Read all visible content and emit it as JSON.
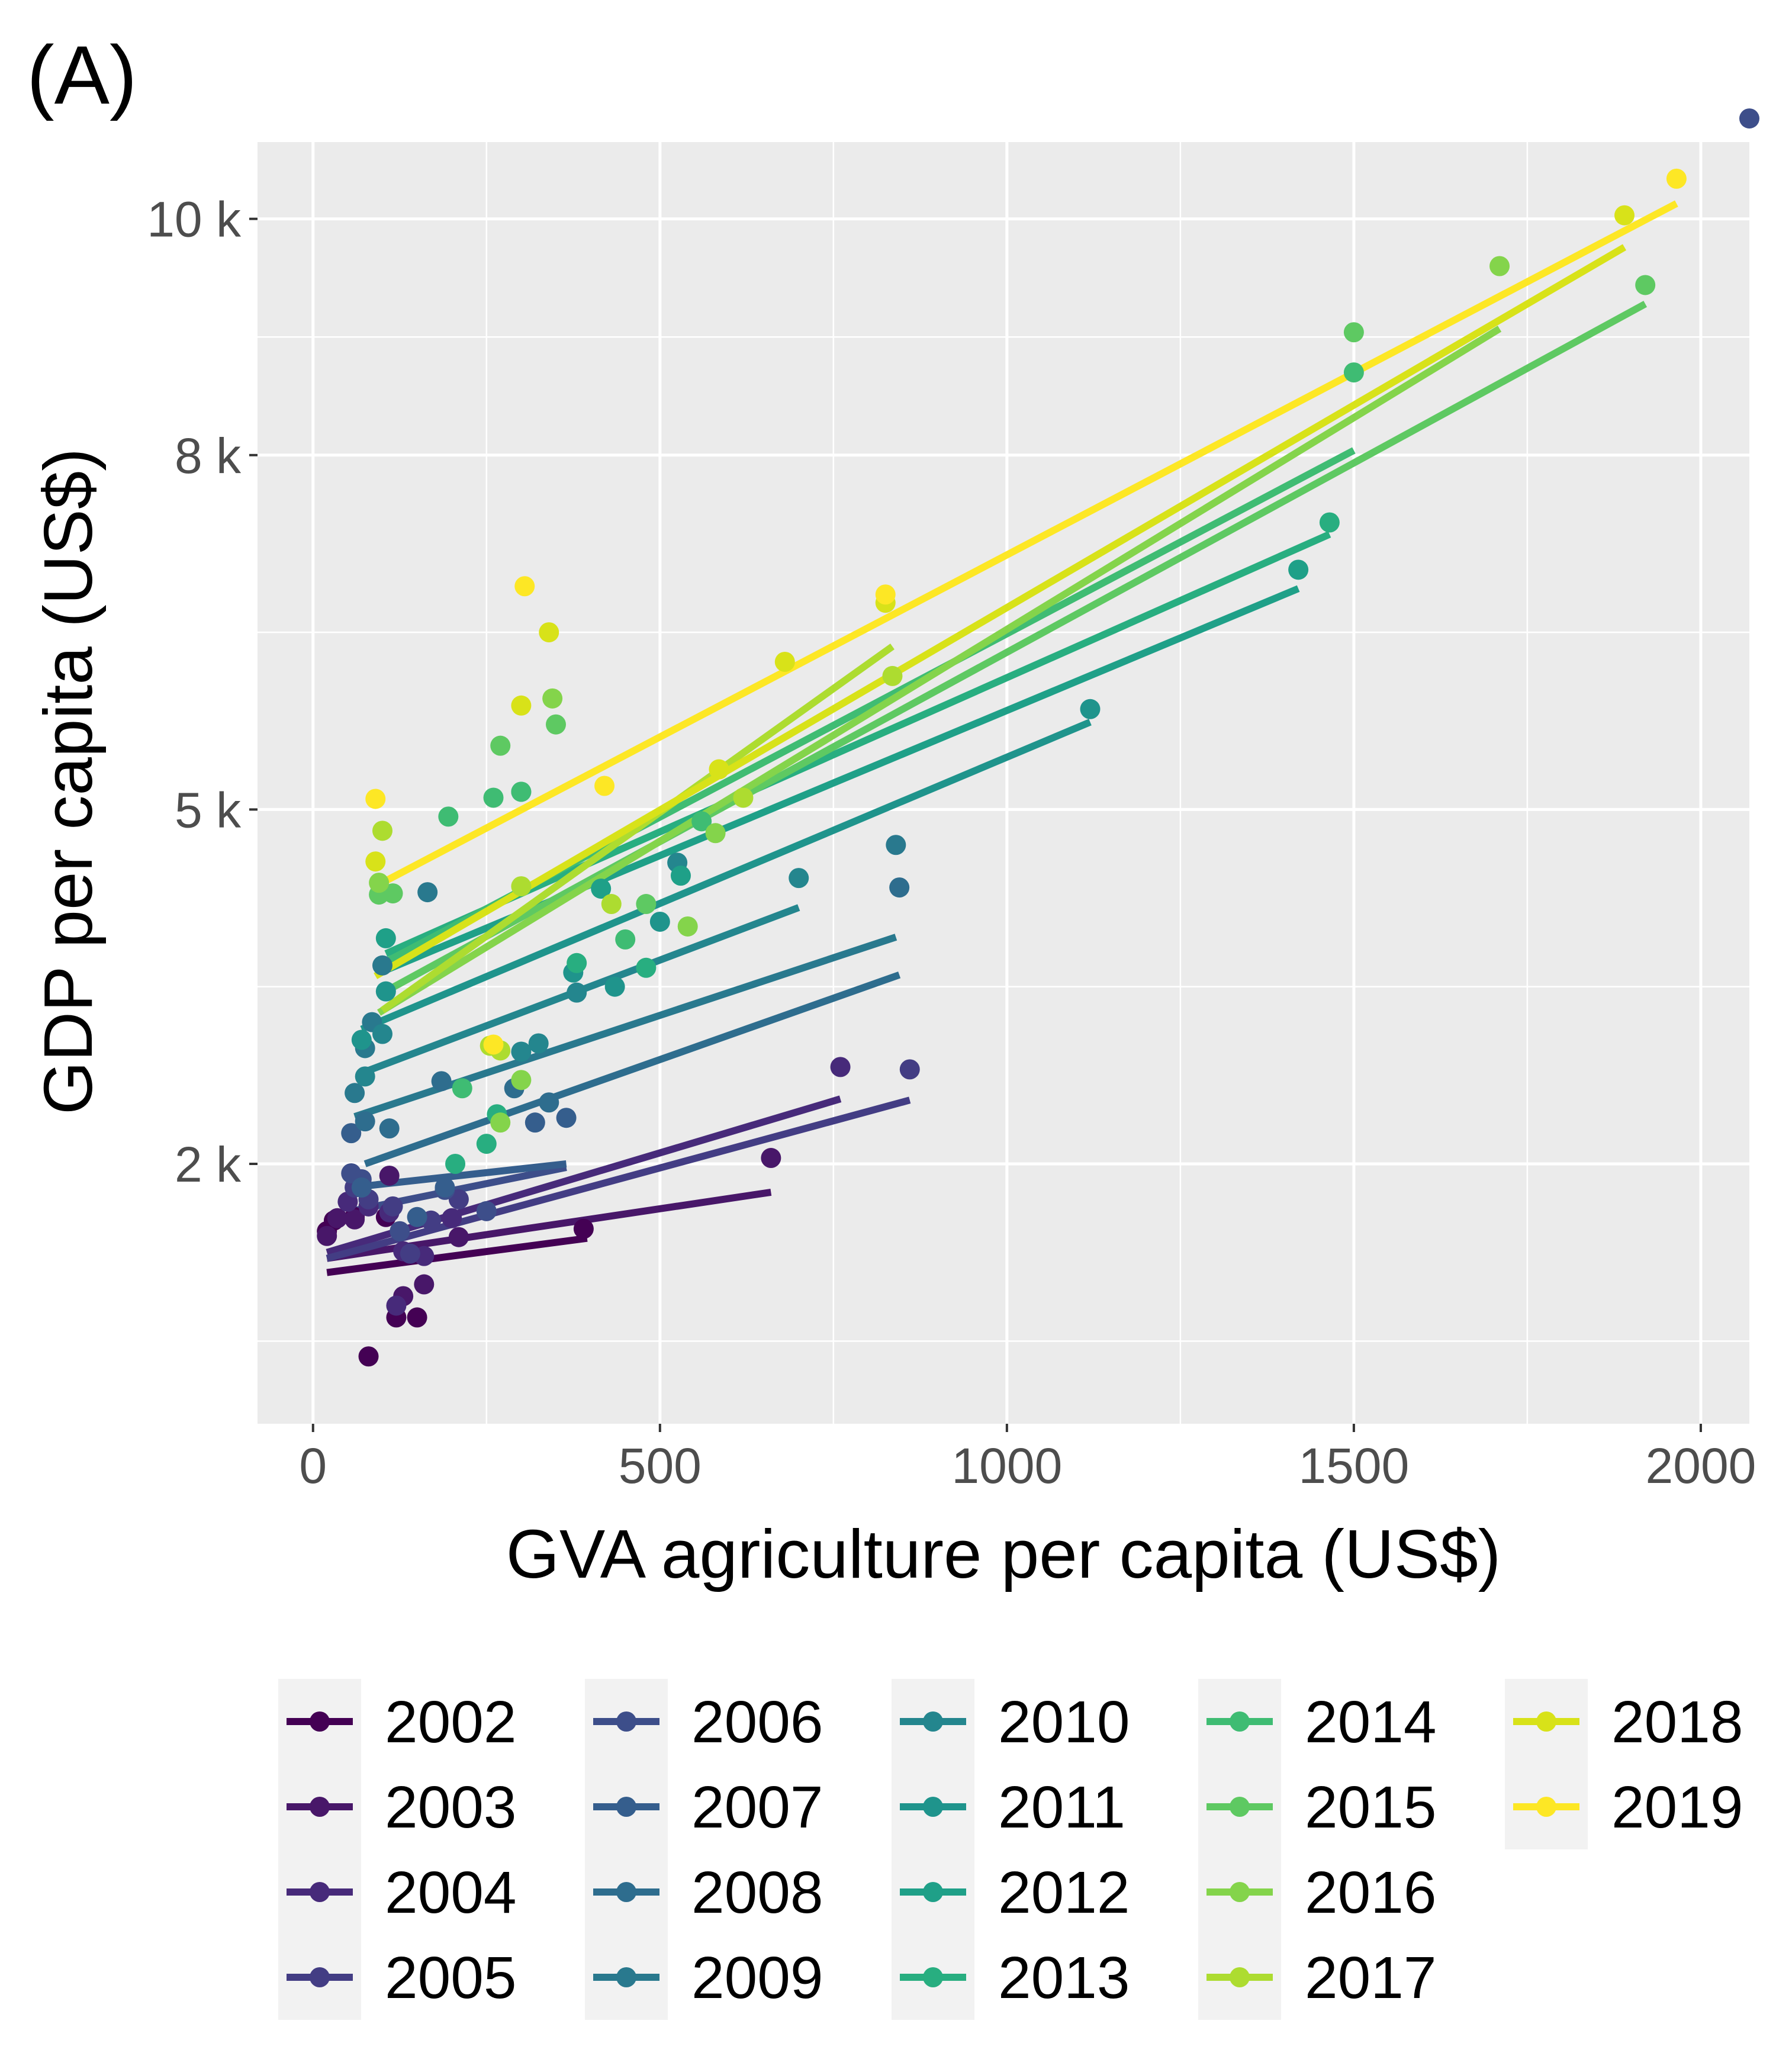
{
  "panel_tag": "(A)",
  "chart_data": {
    "type": "scatter",
    "xlabel": "GVA agriculture per capita (US$)",
    "ylabel": "GDP per capita (US$)",
    "xlim": [
      -80,
      2070
    ],
    "ylim": [
      -200,
      10650
    ],
    "x_ticks": [
      {
        "value": 0,
        "label": "0"
      },
      {
        "value": 500,
        "label": "500"
      },
      {
        "value": 1000,
        "label": "1000"
      },
      {
        "value": 1500,
        "label": "1500"
      },
      {
        "value": 2000,
        "label": "2000"
      }
    ],
    "y_ticks": [
      {
        "value": 2000,
        "label": "2 k"
      },
      {
        "value": 5000,
        "label": "5 k"
      },
      {
        "value": 8000,
        "label": "8 k"
      },
      {
        "value": 10000,
        "label": "10 k"
      }
    ],
    "x_minor": [
      250,
      750,
      1250,
      1750
    ],
    "y_minor": [
      500,
      3500,
      6500,
      9000
    ],
    "grid": true,
    "legend_position": "bottom",
    "series": [
      {
        "name": "2002",
        "color": "#440154",
        "points": [
          [
            20,
            1430
          ],
          [
            30,
            1520
          ],
          [
            60,
            1550
          ],
          [
            80,
            370
          ],
          [
            105,
            1550
          ],
          [
            120,
            700
          ],
          [
            150,
            700
          ],
          [
            390,
            1450
          ]
        ],
        "fit": [
          [
            20,
            1080
          ],
          [
            395,
            1370
          ]
        ]
      },
      {
        "name": "2003",
        "color": "#481769",
        "points": [
          [
            20,
            1390
          ],
          [
            35,
            1540
          ],
          [
            60,
            1530
          ],
          [
            110,
            1900
          ],
          [
            130,
            880
          ],
          [
            160,
            980
          ],
          [
            210,
            1380
          ],
          [
            660,
            2050
          ]
        ],
        "fit": [
          [
            20,
            1200
          ],
          [
            660,
            1760
          ]
        ]
      },
      {
        "name": "2004",
        "color": "#472A7A",
        "points": [
          [
            50,
            1680
          ],
          [
            80,
            1640
          ],
          [
            110,
            1590
          ],
          [
            120,
            800
          ],
          [
            130,
            1260
          ],
          [
            160,
            1220
          ],
          [
            200,
            1540
          ],
          [
            760,
            2820
          ]
        ],
        "fit": [
          [
            20,
            1250
          ],
          [
            760,
            2550
          ]
        ]
      },
      {
        "name": "2005",
        "color": "#433D84",
        "points": [
          [
            60,
            1800
          ],
          [
            80,
            1700
          ],
          [
            115,
            1640
          ],
          [
            140,
            1240
          ],
          [
            170,
            1520
          ],
          [
            210,
            1700
          ],
          [
            860,
            2800
          ]
        ],
        "fit": [
          [
            20,
            1200
          ],
          [
            860,
            2540
          ]
        ]
      },
      {
        "name": "2006",
        "color": "#3D4E8A",
        "points": [
          [
            55,
            1920
          ],
          [
            70,
            1870
          ],
          [
            125,
            1430
          ],
          [
            190,
            1780
          ],
          [
            250,
            1600
          ],
          [
            2070,
            10850
          ]
        ],
        "fit": [
          [
            55,
            1600
          ],
          [
            365,
            1970
          ]
        ]
      },
      {
        "name": "2007",
        "color": "#355E8D",
        "points": [
          [
            55,
            2260
          ],
          [
            70,
            1800
          ],
          [
            150,
            1550
          ],
          [
            190,
            1800
          ],
          [
            320,
            2350
          ],
          [
            365,
            2390
          ]
        ],
        "fit": [
          [
            55,
            1800
          ],
          [
            365,
            2000
          ]
        ]
      },
      {
        "name": "2008",
        "color": "#2E6D8E",
        "points": [
          [
            75,
            2360
          ],
          [
            110,
            2300
          ],
          [
            185,
            2700
          ],
          [
            290,
            2640
          ],
          [
            340,
            2520
          ],
          [
            845,
            4340
          ]
        ],
        "fit": [
          [
            75,
            2000
          ],
          [
            845,
            3600
          ]
        ]
      },
      {
        "name": "2009",
        "color": "#29798E",
        "points": [
          [
            60,
            2600
          ],
          [
            75,
            2980
          ],
          [
            85,
            3200
          ],
          [
            100,
            3680
          ],
          [
            165,
            4300
          ],
          [
            840,
            4700
          ]
        ],
        "fit": [
          [
            60,
            2400
          ],
          [
            840,
            3920
          ]
        ]
      },
      {
        "name": "2010",
        "color": "#24868E",
        "points": [
          [
            75,
            2740
          ],
          [
            100,
            3100
          ],
          [
            300,
            2950
          ],
          [
            325,
            3020
          ],
          [
            380,
            3450
          ],
          [
            525,
            4550
          ],
          [
            700,
            4420
          ]
        ],
        "fit": [
          [
            75,
            2780
          ],
          [
            700,
            4170
          ]
        ]
      },
      {
        "name": "2011",
        "color": "#1F948C",
        "points": [
          [
            70,
            3050
          ],
          [
            105,
            3460
          ],
          [
            375,
            3620
          ],
          [
            435,
            3500
          ],
          [
            500,
            4050
          ],
          [
            1120,
            5850
          ]
        ],
        "fit": [
          [
            70,
            3140
          ],
          [
            1120,
            5740
          ]
        ]
      },
      {
        "name": "2012",
        "color": "#1FA088",
        "points": [
          [
            105,
            3910
          ],
          [
            300,
            5150
          ],
          [
            415,
            4330
          ],
          [
            530,
            4440
          ],
          [
            1420,
            7030
          ]
        ],
        "fit": [
          [
            105,
            3640
          ],
          [
            1420,
            6870
          ]
        ]
      },
      {
        "name": "2013",
        "color": "#28AE80",
        "points": [
          [
            205,
            2000
          ],
          [
            250,
            2170
          ],
          [
            265,
            2420
          ],
          [
            380,
            3700
          ],
          [
            480,
            3660
          ],
          [
            1465,
            7430
          ]
        ],
        "fit": [
          [
            105,
            3780
          ],
          [
            1465,
            7330
          ]
        ]
      },
      {
        "name": "2014",
        "color": "#3FBC73",
        "points": [
          [
            195,
            4940
          ],
          [
            215,
            2640
          ],
          [
            260,
            5100
          ],
          [
            300,
            5150
          ],
          [
            450,
            3900
          ],
          [
            560,
            4900
          ],
          [
            1500,
            8700
          ]
        ],
        "fit": [
          [
            105,
            3710
          ],
          [
            1500,
            8040
          ]
        ]
      },
      {
        "name": "2015",
        "color": "#5EC962",
        "points": [
          [
            95,
            4280
          ],
          [
            115,
            4290
          ],
          [
            270,
            5540
          ],
          [
            350,
            5720
          ],
          [
            480,
            4200
          ],
          [
            1500,
            9040
          ],
          [
            1920,
            9440
          ]
        ],
        "fit": [
          [
            95,
            3430
          ],
          [
            1920,
            9280
          ]
        ]
      },
      {
        "name": "2016",
        "color": "#84D44B",
        "points": [
          [
            95,
            4380
          ],
          [
            270,
            2350
          ],
          [
            300,
            2710
          ],
          [
            345,
            5940
          ],
          [
            540,
            4010
          ],
          [
            580,
            4800
          ],
          [
            1710,
            9600
          ]
        ],
        "fit": [
          [
            95,
            3280
          ],
          [
            1710,
            9070
          ]
        ]
      },
      {
        "name": "2017",
        "color": "#ADDC30",
        "points": [
          [
            100,
            4820
          ],
          [
            255,
            3000
          ],
          [
            270,
            2960
          ],
          [
            300,
            4350
          ],
          [
            430,
            4200
          ],
          [
            620,
            5100
          ],
          [
            835,
            6130
          ]
        ],
        "fit": [
          [
            100,
            3300
          ],
          [
            835,
            6380
          ]
        ]
      },
      {
        "name": "2018",
        "color": "#D8E219",
        "points": [
          [
            90,
            4560
          ],
          [
            300,
            5880
          ],
          [
            340,
            6500
          ],
          [
            585,
            5340
          ],
          [
            680,
            6250
          ],
          [
            825,
            6750
          ],
          [
            1890,
            10030
          ]
        ],
        "fit": [
          [
            90,
            3590
          ],
          [
            1890,
            9760
          ]
        ]
      },
      {
        "name": "2019",
        "color": "#FDE725",
        "points": [
          [
            90,
            5090
          ],
          [
            260,
            3010
          ],
          [
            305,
            6890
          ],
          [
            420,
            5200
          ],
          [
            825,
            6820
          ],
          [
            1965,
            10340
          ]
        ],
        "fit": [
          [
            90,
            4350
          ],
          [
            1965,
            10130
          ]
        ]
      }
    ]
  }
}
